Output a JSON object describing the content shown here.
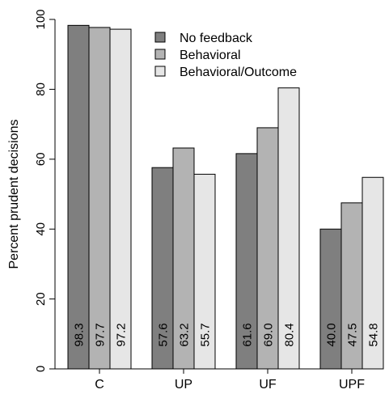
{
  "chart_data": {
    "type": "bar",
    "ylabel": "Percent prudent decisions",
    "ylim": [
      0,
      100
    ],
    "yticks": [
      0,
      20,
      40,
      60,
      80,
      100
    ],
    "categories": [
      "C",
      "UP",
      "UF",
      "UPF"
    ],
    "series": [
      {
        "name": "No feedback",
        "color": "#7f7f7f",
        "values": [
          98.3,
          57.6,
          61.6,
          40.0
        ],
        "labels": [
          "98.3",
          "57.6",
          "61.6",
          "40.0"
        ]
      },
      {
        "name": "Behavioral",
        "color": "#b3b3b3",
        "values": [
          97.7,
          63.2,
          69.0,
          47.5
        ],
        "labels": [
          "97.7",
          "63.2",
          "69.0",
          "47.5"
        ]
      },
      {
        "name": "Behavioral/Outcome",
        "color": "#e6e6e6",
        "values": [
          97.2,
          55.7,
          80.4,
          54.8
        ],
        "labels": [
          "97.2",
          "55.7",
          "80.4",
          "54.8"
        ]
      }
    ],
    "legend_position": "top-right",
    "grid": false
  }
}
